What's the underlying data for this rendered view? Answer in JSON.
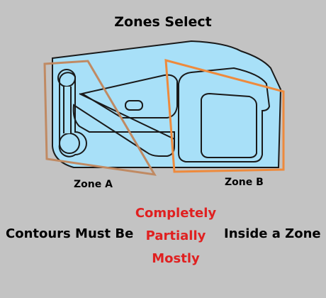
{
  "title": "Zones Select",
  "zones": [
    {
      "label": "Zone A",
      "color": "#c08a63"
    },
    {
      "label": "Zone B",
      "color": "#ee8a3c"
    }
  ],
  "sentence": {
    "lead": "Contours Must Be",
    "tail": "Inside a Zone"
  },
  "options": [
    "Completely",
    "Partially",
    "Mostly"
  ],
  "colors": {
    "background": "#c3c3c3",
    "part_fill": "#a8e0f8",
    "part_outline": "#1a1a1a",
    "option_text": "#e02020"
  }
}
